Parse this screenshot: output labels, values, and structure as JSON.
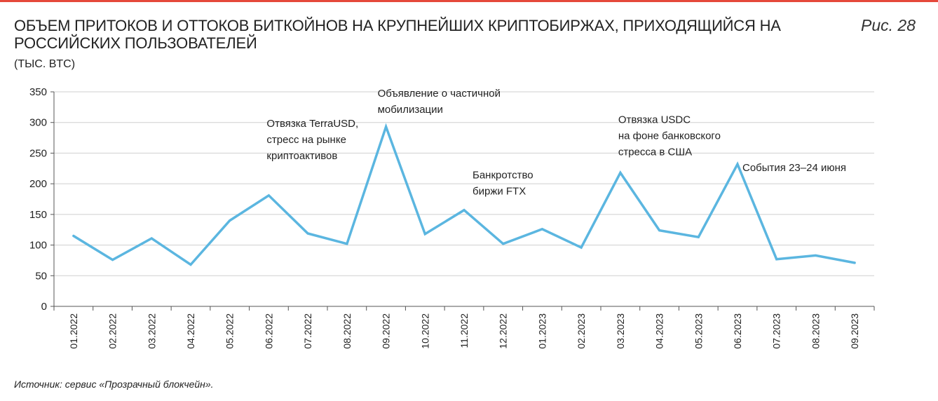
{
  "header": {
    "title": "ОБЪЕМ ПРИТОКОВ И ОТТОКОВ БИТКОЙНОВ НА КРУПНЕЙШИХ КРИПТОБИРЖАХ, ПРИХОДЯЩИЙСЯ НА РОССИЙСКИХ ПОЛЬЗОВАТЕЛЕЙ",
    "figure_label": "Рис. 28",
    "units": "(ТЫС. BTC)"
  },
  "footer": {
    "source": "Источник: сервис «Прозрачный блокчейн»."
  },
  "colors": {
    "line": "#5bb6e0",
    "grid": "#cfcfcf",
    "accent_rule": "#e5483b"
  },
  "chart_data": {
    "type": "line",
    "categories": [
      "01.2022",
      "02.2022",
      "03.2022",
      "04.2022",
      "05.2022",
      "06.2022",
      "07.2022",
      "08.2022",
      "09.2022",
      "10.2022",
      "11.2022",
      "12.2022",
      "01.2023",
      "02.2023",
      "03.2023",
      "04.2023",
      "05.2023",
      "06.2023",
      "07.2023",
      "08.2023",
      "09.2023"
    ],
    "series": [
      {
        "values": [
          115,
          76,
          111,
          68,
          140,
          181,
          119,
          102,
          293,
          118,
          157,
          102,
          126,
          96,
          218,
          124,
          113,
          232,
          77,
          83,
          71
        ]
      }
    ],
    "ylim": [
      0,
      350
    ],
    "yticks": [
      0,
      50,
      100,
      150,
      200,
      250,
      300,
      350
    ],
    "grid": true,
    "legend": "none",
    "annotations": [
      {
        "category_index": 5,
        "lines": [
          "Отвязка TerraUSD,",
          "стресс на рынке",
          "криптоактивов"
        ]
      },
      {
        "category_index": 8,
        "lines": [
          "Объявление о частичной",
          "мобилизации"
        ]
      },
      {
        "category_index": 10,
        "lines": [
          "Банкротство",
          "биржи FTX"
        ]
      },
      {
        "category_index": 14,
        "lines": [
          "Отвязка USDC",
          "на фоне банковского",
          "стресса в США"
        ]
      },
      {
        "category_index": 17,
        "lines": [
          "События 23–24 июня"
        ]
      }
    ]
  }
}
